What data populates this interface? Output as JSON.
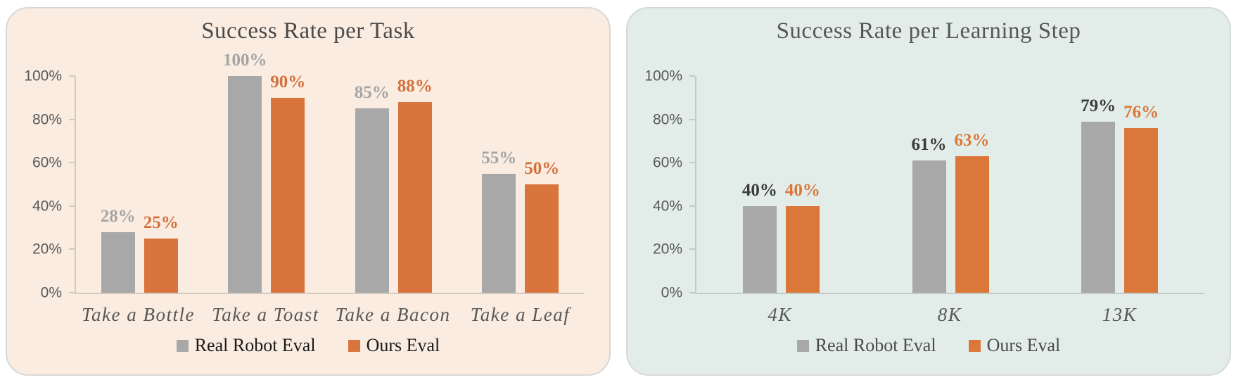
{
  "chart_data": [
    {
      "type": "bar",
      "title": "Success Rate per Task",
      "categories": [
        "Take a Bottle",
        "Take a Toast",
        "Take a Bacon",
        "Take a Leaf"
      ],
      "series": [
        {
          "name": "Real Robot Eval",
          "values": [
            28,
            100,
            85,
            55
          ],
          "color": "#A9A8A8",
          "label_color": "#A5A4A4"
        },
        {
          "name": "Ours Eval",
          "values": [
            25,
            90,
            88,
            50
          ],
          "color": "#D8743C",
          "label_color": "#D3703C"
        }
      ],
      "value_suffix": "%",
      "ylim": [
        0,
        100
      ],
      "y_ticks": [
        0,
        20,
        40,
        60,
        80,
        100
      ],
      "y_tick_labels": [
        "0%",
        "20%",
        "40%",
        "60%",
        "80%",
        "100%"
      ],
      "grid": false,
      "legend_position": "bottom",
      "panel_background": "#FAECE1",
      "title_color": "#4A4A4A",
      "legend_text_color": "#1A1A1A",
      "tick_label_color": "#595959",
      "category_label_color": "#575757"
    },
    {
      "type": "bar",
      "title": "Success Rate per Learning Step",
      "categories": [
        "4K",
        "8K",
        "13K"
      ],
      "series": [
        {
          "name": "Real Robot Eval",
          "values": [
            40,
            61,
            79
          ],
          "color": "#A9A8A8",
          "label_color": "#3A3A3A"
        },
        {
          "name": "Ours Eval",
          "values": [
            40,
            63,
            76
          ],
          "color": "#DB7839",
          "label_color": "#DB7839"
        }
      ],
      "value_suffix": "%",
      "ylim": [
        0,
        100
      ],
      "y_ticks": [
        0,
        20,
        40,
        60,
        80,
        100
      ],
      "y_tick_labels": [
        "0%",
        "20%",
        "40%",
        "60%",
        "80%",
        "100%"
      ],
      "grid": false,
      "legend_position": "bottom",
      "panel_background": "#E2EDEA",
      "title_color": "#565656",
      "legend_text_color": "#4A4A4A",
      "tick_label_color": "#595959",
      "category_label_color": "#575757"
    }
  ]
}
